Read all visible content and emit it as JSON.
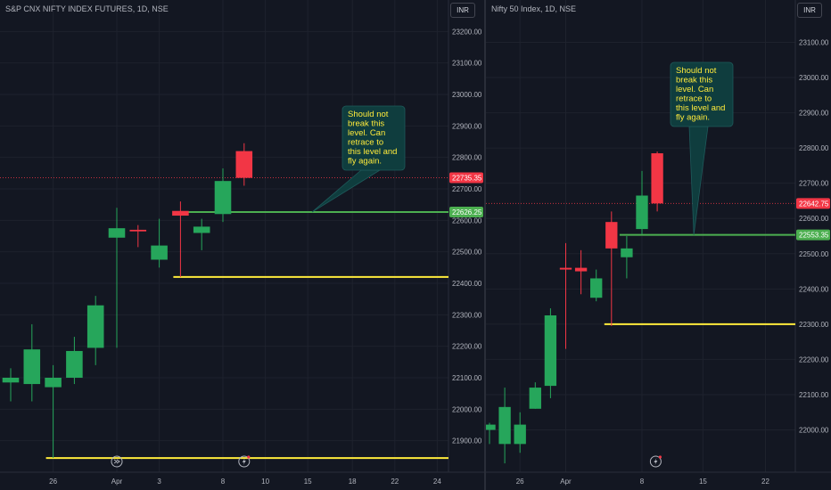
{
  "colors": {
    "background": "#131722",
    "grid": "#1e222d",
    "axis_text": "#b2b5be",
    "up": "#26a65b",
    "down": "#f23645",
    "support_green": "#4caf50",
    "support_yellow": "#ffeb3b",
    "callout_bg": "#0f3d3e",
    "callout_text": "#ffeb3b"
  },
  "icons": [
    "calendar-forward-icon",
    "lightning-icon"
  ],
  "chart_data": [
    {
      "type": "candlestick",
      "title": "S&P CNX NIFTY INDEX FUTURES, 1D, NSE",
      "currency_button": "INR",
      "ylim": [
        21800,
        23300
      ],
      "y_ticks": [
        21900,
        22000,
        22100,
        22200,
        22300,
        22400,
        22500,
        22600,
        22700,
        22800,
        22900,
        23000,
        23100,
        23200
      ],
      "y_tick_labels": [
        "21900.00",
        "22000.00",
        "22100.00",
        "22200.00",
        "22300.00",
        "22400.00",
        "22500.00",
        "22600.00",
        "22700.00",
        "22800.00",
        "22900.00",
        "23000.00",
        "23100.00",
        "23200.00"
      ],
      "x_ticks": [
        {
          "label": "26",
          "index": 2
        },
        {
          "label": "Apr",
          "index": 5
        },
        {
          "label": "3",
          "index": 7
        },
        {
          "label": "8",
          "index": 10
        },
        {
          "label": "10",
          "index": 12
        },
        {
          "label": "15",
          "index": 14
        },
        {
          "label": "18",
          "index": 16.1
        },
        {
          "label": "22",
          "index": 18.1
        },
        {
          "label": "24",
          "index": 20.1
        }
      ],
      "candles": [
        {
          "o": 22085,
          "h": 22130,
          "l": 22025,
          "c": 22100
        },
        {
          "o": 22080,
          "h": 22270,
          "l": 22025,
          "c": 22190
        },
        {
          "o": 22070,
          "h": 22140,
          "l": 21845,
          "c": 22100
        },
        {
          "o": 22100,
          "h": 22230,
          "l": 22080,
          "c": 22185
        },
        {
          "o": 22195,
          "h": 22360,
          "l": 22140,
          "c": 22330
        },
        {
          "o": 22545,
          "h": 22640,
          "l": 22195,
          "c": 22575
        },
        {
          "o": 22570,
          "h": 22585,
          "l": 22515,
          "c": 22565
        },
        {
          "o": 22475,
          "h": 22605,
          "l": 22450,
          "c": 22520
        },
        {
          "o": 22630,
          "h": 22660,
          "l": 22420,
          "c": 22615
        },
        {
          "o": 22560,
          "h": 22605,
          "l": 22505,
          "c": 22580
        },
        {
          "o": 22620,
          "h": 22765,
          "l": 22595,
          "c": 22725
        },
        {
          "o": 22820,
          "h": 22845,
          "l": 22710,
          "c": 22735
        }
      ],
      "levels": [
        {
          "name": "green-support",
          "value": 22626.25,
          "from_index": 8,
          "color": "#4caf50",
          "label": "22626.25"
        },
        {
          "name": "yellow-low",
          "value": 22420,
          "from_index": 8,
          "color": "#ffeb3b"
        },
        {
          "name": "yellow-bottom",
          "value": 21845,
          "from_index": 2,
          "color": "#ffeb3b"
        }
      ],
      "last_price": {
        "value": 22735.35,
        "label": "22735.35",
        "color": "#f23645"
      },
      "annotation": {
        "lines": [
          "Should not",
          "break this",
          "level. Can",
          "retrace to",
          "this level and",
          "fly again."
        ],
        "pointer_index": 14.2,
        "pointer_value": 22626.25
      },
      "event_icons": [
        {
          "icon": "calendar-forward-icon",
          "index": 5
        },
        {
          "icon": "lightning-icon",
          "index": 11
        }
      ]
    },
    {
      "type": "candlestick",
      "title": "Nifty 50 Index, 1D, NSE",
      "currency_button": "INR",
      "ylim": [
        21880,
        23220
      ],
      "y_ticks": [
        22000,
        22100,
        22200,
        22300,
        22400,
        22500,
        22600,
        22700,
        22800,
        22900,
        23000,
        23100
      ],
      "y_tick_labels": [
        "22000.00",
        "22100.00",
        "22200.00",
        "22300.00",
        "22400.00",
        "22500.00",
        "22600.00",
        "22700.00",
        "22800.00",
        "22900.00",
        "23000.00",
        "23100.00"
      ],
      "x_ticks": [
        {
          "label": "26",
          "index": 2
        },
        {
          "label": "Apr",
          "index": 5
        },
        {
          "label": "8",
          "index": 10
        },
        {
          "label": "15",
          "index": 14
        },
        {
          "label": "22",
          "index": 18.1
        }
      ],
      "candles": [
        {
          "o": 22000,
          "h": 22020,
          "l": 21960,
          "c": 22015
        },
        {
          "o": 21960,
          "h": 22120,
          "l": 21905,
          "c": 22065
        },
        {
          "o": 21960,
          "h": 22050,
          "l": 21935,
          "c": 22015
        },
        {
          "o": 22060,
          "h": 22135,
          "l": 22060,
          "c": 22120
        },
        {
          "o": 22125,
          "h": 22345,
          "l": 22090,
          "c": 22325
        },
        {
          "o": 22460,
          "h": 22530,
          "l": 22230,
          "c": 22455
        },
        {
          "o": 22460,
          "h": 22510,
          "l": 22385,
          "c": 22450
        },
        {
          "o": 22375,
          "h": 22455,
          "l": 22365,
          "c": 22430
        },
        {
          "o": 22590,
          "h": 22620,
          "l": 22295,
          "c": 22515
        },
        {
          "o": 22490,
          "h": 22550,
          "l": 22430,
          "c": 22515
        },
        {
          "o": 22570,
          "h": 22735,
          "l": 22555,
          "c": 22665
        },
        {
          "o": 22785,
          "h": 22790,
          "l": 22620,
          "c": 22642.75
        }
      ],
      "levels": [
        {
          "name": "green-support",
          "value": 22553.35,
          "from_index": 9,
          "color": "#4caf50",
          "label": "22553.35"
        },
        {
          "name": "yellow-low",
          "value": 22300,
          "from_index": 8,
          "color": "#ffeb3b"
        }
      ],
      "last_price": {
        "value": 22642.75,
        "label": "22642.75",
        "color": "#f23645"
      },
      "annotation": {
        "lines": [
          "Should not",
          "break this",
          "level. Can",
          "retrace to",
          "this level and",
          "fly again."
        ],
        "pointer_index": 13.4,
        "pointer_value": 22553.35
      },
      "event_icons": [
        {
          "icon": "lightning-icon",
          "index": 10.9
        }
      ]
    }
  ]
}
